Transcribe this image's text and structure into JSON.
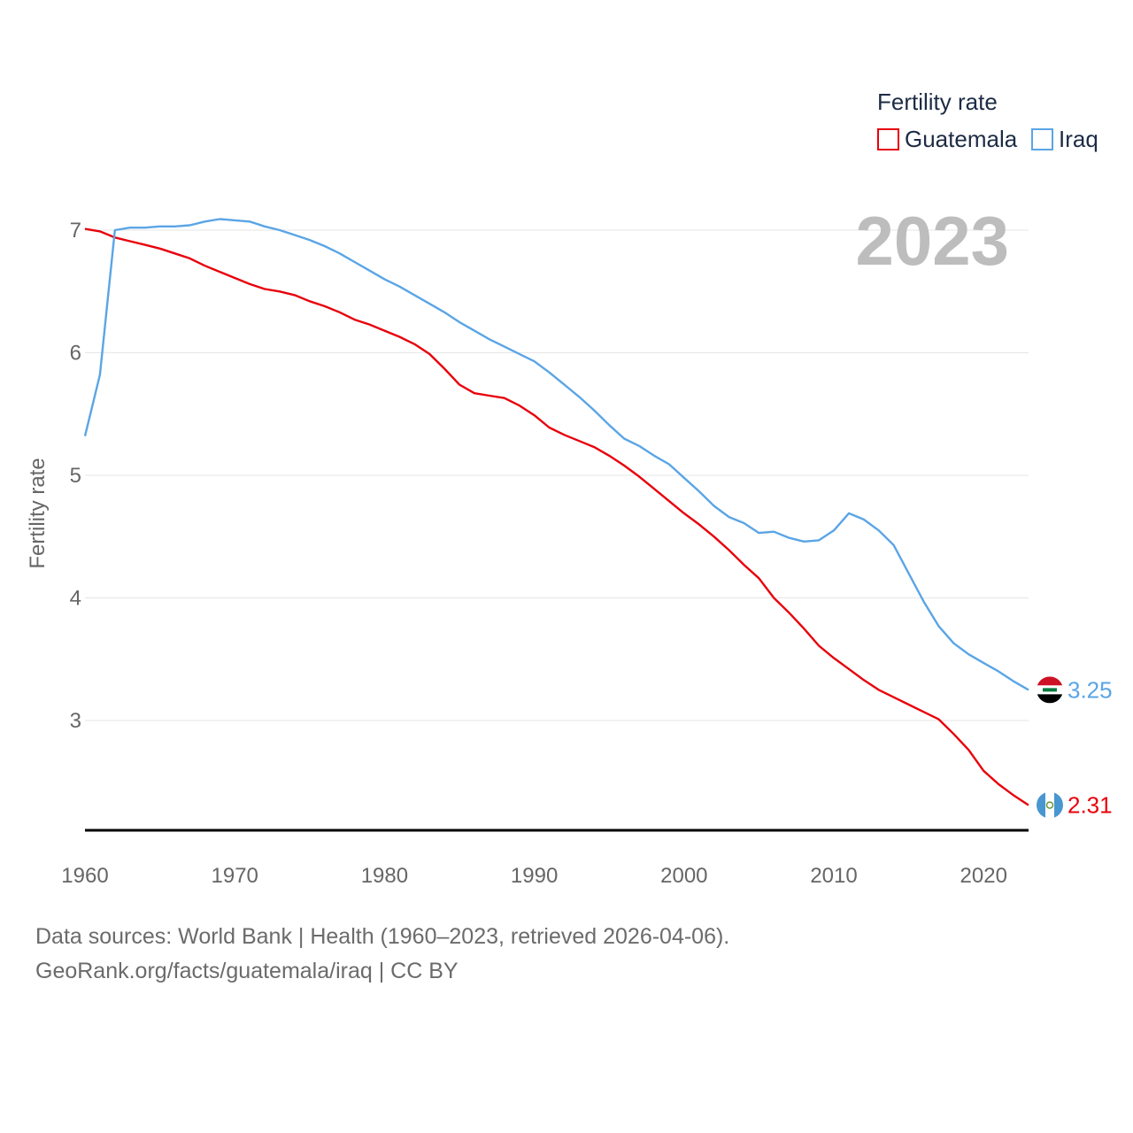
{
  "chart_data": {
    "type": "line",
    "title": "",
    "year_label": "2023",
    "xlabel": "",
    "ylabel": "Fertility rate",
    "xlim": [
      1960,
      2023
    ],
    "ylim": [
      2.1,
      7.2
    ],
    "x_ticks": [
      1960,
      1970,
      1980,
      1990,
      2000,
      2010,
      2020
    ],
    "y_ticks": [
      3,
      4,
      5,
      6,
      7
    ],
    "grid": true,
    "legend": {
      "title": "Fertility rate",
      "position": "top-right"
    },
    "x": [
      1960,
      1961,
      1962,
      1963,
      1964,
      1965,
      1966,
      1967,
      1968,
      1969,
      1970,
      1971,
      1972,
      1973,
      1974,
      1975,
      1976,
      1977,
      1978,
      1979,
      1980,
      1981,
      1982,
      1983,
      1984,
      1985,
      1986,
      1987,
      1988,
      1989,
      1990,
      1991,
      1992,
      1993,
      1994,
      1995,
      1996,
      1997,
      1998,
      1999,
      2000,
      2001,
      2002,
      2003,
      2004,
      2005,
      2006,
      2007,
      2008,
      2009,
      2010,
      2011,
      2012,
      2013,
      2014,
      2015,
      2016,
      2017,
      2018,
      2019,
      2020,
      2021,
      2022,
      2023
    ],
    "series": [
      {
        "name": "Guatemala",
        "color": "#e8000b",
        "end_label": "2.31",
        "flag": "guatemala-flag",
        "values": [
          7.01,
          6.99,
          6.94,
          6.91,
          6.88,
          6.85,
          6.81,
          6.77,
          6.71,
          6.66,
          6.61,
          6.56,
          6.52,
          6.5,
          6.47,
          6.42,
          6.38,
          6.33,
          6.27,
          6.23,
          6.18,
          6.13,
          6.07,
          5.99,
          5.87,
          5.74,
          5.67,
          5.65,
          5.63,
          5.57,
          5.49,
          5.39,
          5.33,
          5.28,
          5.23,
          5.16,
          5.08,
          4.99,
          4.89,
          4.79,
          4.69,
          4.6,
          4.5,
          4.39,
          4.27,
          4.16,
          4.0,
          3.88,
          3.75,
          3.61,
          3.51,
          3.42,
          3.33,
          3.25,
          3.19,
          3.13,
          3.07,
          3.01,
          2.89,
          2.76,
          2.59,
          2.48,
          2.39,
          2.31
        ]
      },
      {
        "name": "Iraq",
        "color": "#5aa5e6",
        "end_label": "3.25",
        "flag": "iraq-flag",
        "values": [
          5.32,
          5.82,
          7.0,
          7.02,
          7.02,
          7.03,
          7.03,
          7.04,
          7.07,
          7.09,
          7.08,
          7.07,
          7.03,
          7.0,
          6.96,
          6.92,
          6.87,
          6.81,
          6.74,
          6.67,
          6.6,
          6.54,
          6.47,
          6.4,
          6.33,
          6.25,
          6.18,
          6.11,
          6.05,
          5.99,
          5.93,
          5.84,
          5.74,
          5.64,
          5.53,
          5.41,
          5.3,
          5.24,
          5.16,
          5.09,
          4.98,
          4.87,
          4.75,
          4.66,
          4.61,
          4.53,
          4.54,
          4.49,
          4.46,
          4.47,
          4.55,
          4.69,
          4.64,
          4.55,
          4.43,
          4.2,
          3.97,
          3.77,
          3.63,
          3.54,
          3.47,
          3.4,
          3.32,
          3.25
        ]
      }
    ]
  },
  "footer": {
    "line1": "Data sources: World Bank | Health (1960–2023, retrieved 2026-04-06).",
    "line2": "GeoRank.org/facts/guatemala/iraq | CC BY"
  }
}
